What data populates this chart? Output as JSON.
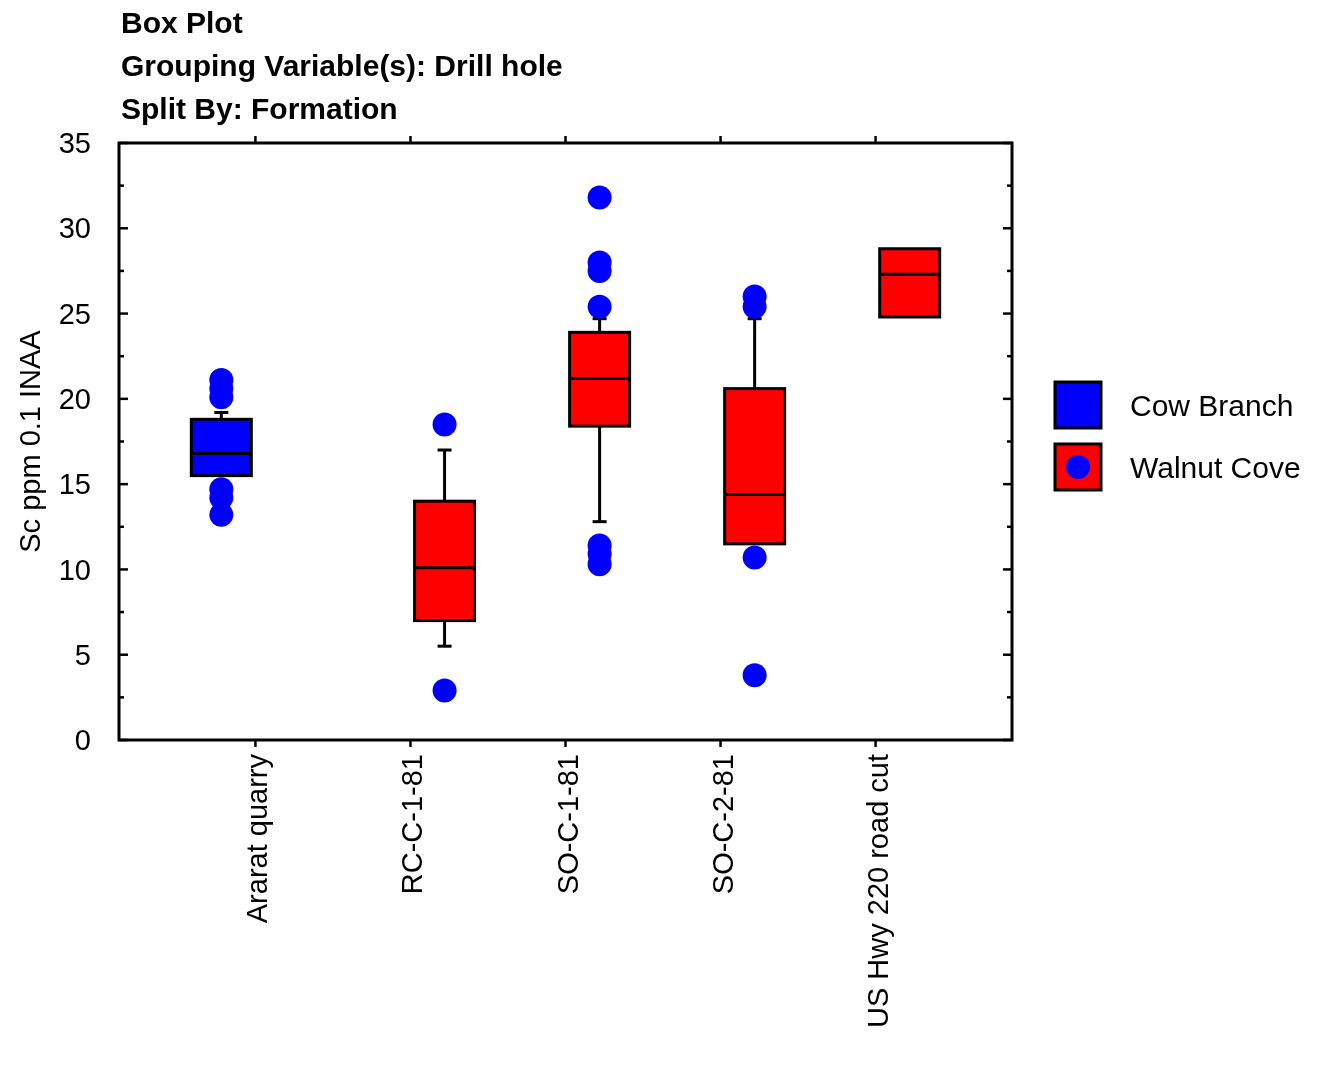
{
  "chart_data": {
    "type": "box",
    "title": "Box Plot",
    "subtitle": "Grouping Variable(s): Drill hole",
    "annotations": [
      "Split By: Formation"
    ],
    "ylabel": "Sc ppm 0.1 INAA",
    "categories": [
      "Ararat quarry",
      "RC-C-1-81",
      "SO-C-1-81",
      "SO-C-2-81",
      "US Hwy 220 road cut"
    ],
    "ylim": [
      0,
      35
    ],
    "yticks": [
      0,
      {
        "value": 2.5,
        "label": null
      },
      5,
      {
        "value": 7.5,
        "label": null
      },
      10,
      {
        "value": 12.5,
        "label": null
      },
      15,
      {
        "value": 17.5,
        "label": null
      },
      20,
      {
        "value": 22.5,
        "label": null
      },
      25,
      {
        "value": 27.5,
        "label": null
      },
      30,
      {
        "value": 32.5,
        "label": null
      },
      35
    ],
    "legend": "right",
    "grid": false,
    "series": [
      {
        "name": "Cow Branch",
        "color": "#0000ff",
        "boxes": [
          {
            "low": 15.5,
            "q1": 15.5,
            "median": 16.8,
            "q3": 18.8,
            "high": 19.2,
            "outliers": [
              21.1,
              20.6,
              20.1,
              14.7,
              14.2,
              13.2
            ]
          },
          null,
          null,
          null,
          null
        ]
      },
      {
        "name": "Walnut Cove",
        "color": "#ff0000",
        "boxes": [
          null,
          {
            "low": 5.5,
            "q1": 7.0,
            "median": 10.1,
            "q3": 14.0,
            "high": 17.0,
            "outliers": [
              18.5,
              2.9
            ]
          },
          {
            "low": 12.8,
            "q1": 18.4,
            "median": 21.2,
            "q3": 23.9,
            "high": 24.7,
            "outliers": [
              31.8,
              28.0,
              27.5,
              25.4,
              11.4,
              10.9,
              10.3
            ]
          },
          {
            "low": 11.5,
            "q1": 11.5,
            "median": 14.4,
            "q3": 20.6,
            "high": 24.7,
            "outliers": [
              26.0,
              25.4,
              10.7,
              3.8
            ]
          },
          {
            "low": 24.8,
            "q1": 24.8,
            "median": 27.3,
            "q3": 28.8,
            "high": 28.8
          }
        ]
      }
    ]
  }
}
